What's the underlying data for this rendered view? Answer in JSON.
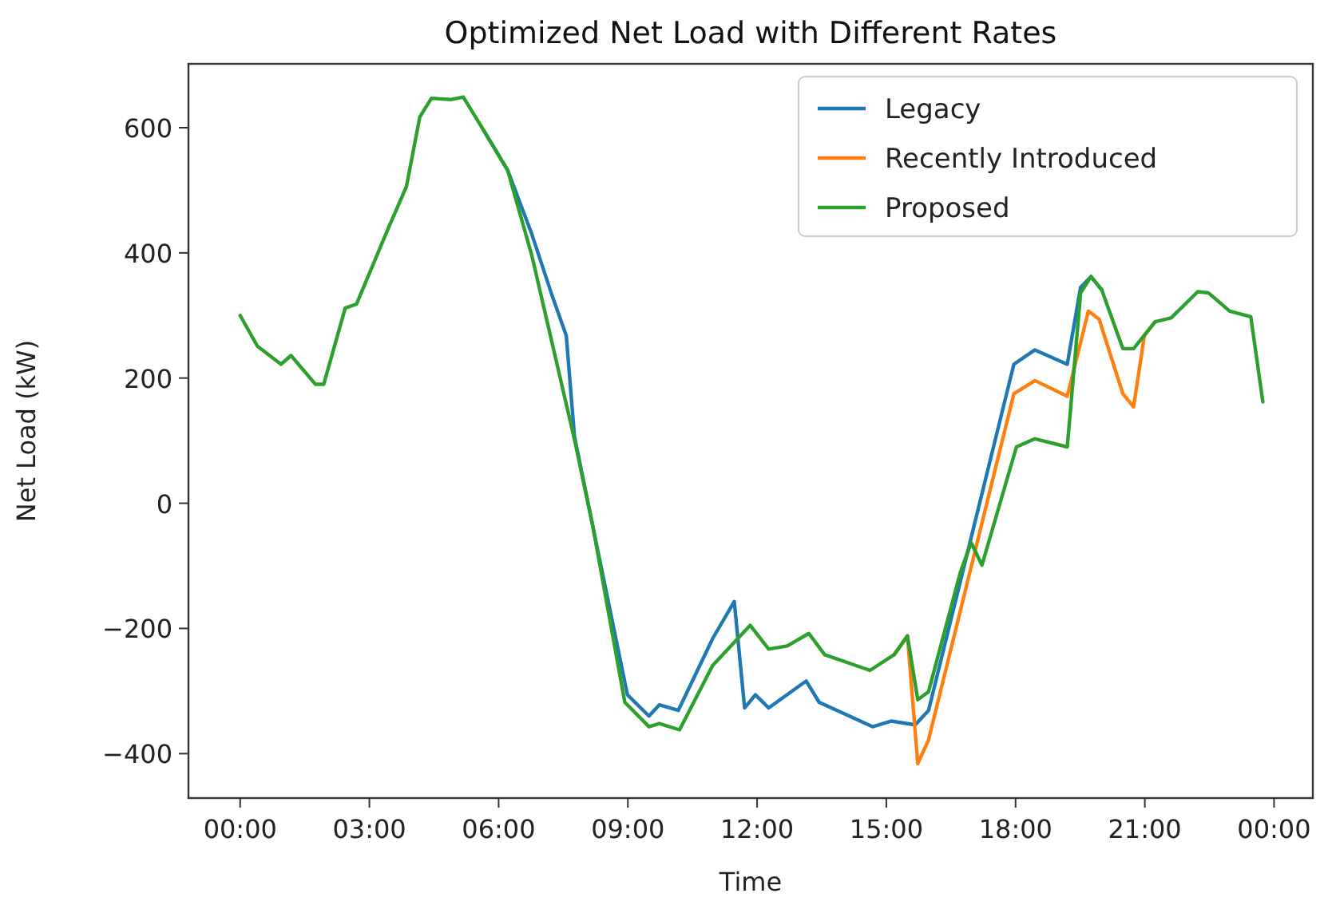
{
  "chart_data": {
    "type": "line",
    "title": "Optimized Net Load with Different Rates",
    "xlabel": "Time",
    "ylabel": "Net Load (kW)",
    "xlim": [
      -1.2,
      24.9
    ],
    "ylim": [
      -471,
      702
    ],
    "xticks": [
      {
        "value": 0,
        "label": "00:00"
      },
      {
        "value": 3,
        "label": "03:00"
      },
      {
        "value": 6,
        "label": "06:00"
      },
      {
        "value": 9,
        "label": "09:00"
      },
      {
        "value": 12,
        "label": "12:00"
      },
      {
        "value": 15,
        "label": "15:00"
      },
      {
        "value": 18,
        "label": "18:00"
      },
      {
        "value": 21,
        "label": "21:00"
      },
      {
        "value": 24,
        "label": "00:00"
      }
    ],
    "yticks": [
      -400,
      -200,
      0,
      200,
      400,
      600
    ],
    "legend": "top right",
    "grid": false,
    "marker": "none",
    "line_style": "solid",
    "series": [
      {
        "name": "Legacy",
        "color": "#1f77b4",
        "x": [
          5.65,
          6.21,
          6.77,
          7.26,
          7.57,
          7.76,
          8.19,
          8.99,
          9.49,
          9.73,
          10.17,
          10.97,
          11.47,
          11.71,
          11.96,
          12.27,
          13.14,
          13.44,
          14.68,
          15.11,
          15.67,
          15.98,
          17.96,
          18.45,
          19.2,
          19.51,
          19.75,
          20.0
        ],
        "values": [
          596,
          532,
          430,
          328,
          268,
          107,
          -38,
          -306,
          -340,
          -322,
          -331,
          -216,
          -157,
          -327,
          -306,
          -327,
          -284,
          -318,
          -357,
          -348,
          -354,
          -331,
          222,
          245,
          222,
          345,
          362,
          341
        ]
      },
      {
        "name": "Recently Introduced",
        "color": "#ff7f0e",
        "x": [
          15.18,
          15.49,
          15.73,
          15.98,
          17.96,
          18.45,
          19.2,
          19.69,
          19.94,
          20.49,
          20.74,
          20.99,
          21.24
        ],
        "values": [
          -242,
          -212,
          -416,
          -378,
          175,
          196,
          171,
          307,
          294,
          175,
          154,
          268,
          290
        ]
      },
      {
        "name": "Proposed",
        "color": "#2ca02c",
        "x": [
          0,
          0.4,
          0.95,
          1.18,
          1.75,
          1.94,
          2.44,
          2.7,
          3.43,
          3.86,
          4.17,
          4.44,
          4.9,
          5.18,
          5.65,
          6.21,
          6.77,
          7.76,
          8.19,
          8.93,
          9.49,
          9.73,
          10.2,
          10.97,
          11.84,
          12.27,
          12.7,
          13.2,
          13.57,
          14.62,
          15.18,
          15.49,
          15.73,
          15.98,
          16.72,
          16.97,
          17.22,
          18.02,
          18.45,
          19.2,
          19.51,
          19.75,
          20.0,
          20.49,
          20.74,
          21.24,
          21.61,
          22.23,
          22.48,
          22.97,
          23.46,
          23.74
        ],
        "values": [
          300,
          251,
          222,
          236,
          190,
          190,
          312,
          318,
          438,
          506,
          617,
          647,
          645,
          649,
          596,
          532,
          396,
          102,
          -38,
          -318,
          -357,
          -352,
          -362,
          -259,
          -195,
          -233,
          -228,
          -208,
          -242,
          -267,
          -242,
          -212,
          -314,
          -301,
          -110,
          -63,
          -99,
          90,
          103,
          90,
          336,
          362,
          341,
          247,
          247,
          290,
          296,
          338,
          336,
          307,
          298,
          162
        ]
      }
    ]
  }
}
